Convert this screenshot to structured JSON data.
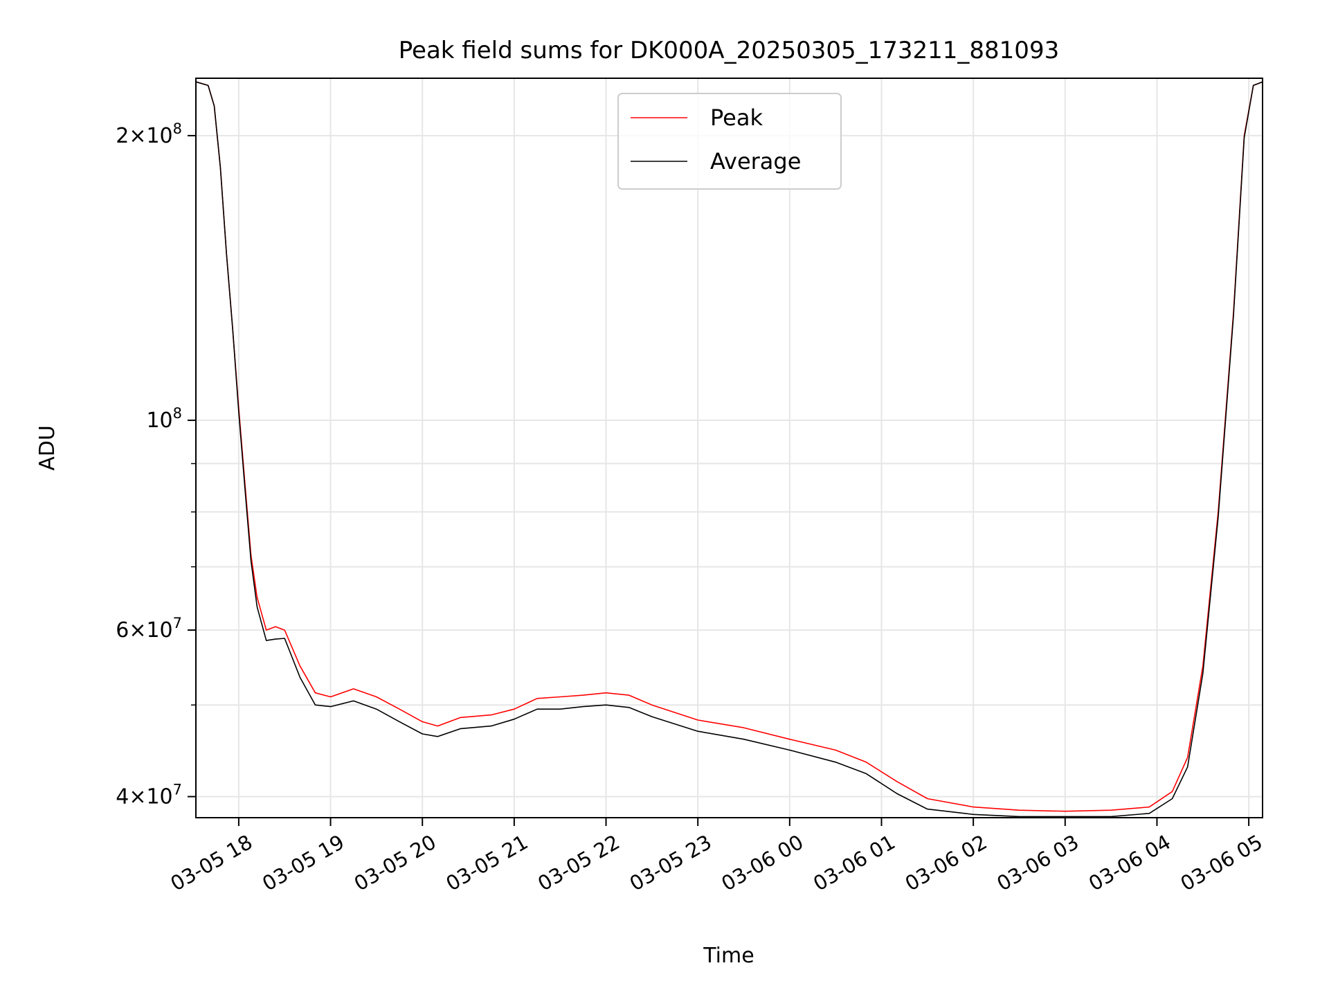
{
  "chart_data": {
    "type": "line",
    "title": "Peak field sums for DK000A_20250305_173211_881093",
    "xlabel": "Time",
    "ylabel": "ADU",
    "yscale": "log",
    "xlim": [
      "2025-03-05 17:32",
      "2025-03-06 05:09"
    ],
    "ylim": [
      38000000,
      230000000
    ],
    "grid": true,
    "legend_position": "top-center",
    "x_ticks": [
      {
        "value": "2025-03-05 18:00",
        "label": "03-05 18"
      },
      {
        "value": "2025-03-05 19:00",
        "label": "03-05 19"
      },
      {
        "value": "2025-03-05 20:00",
        "label": "03-05 20"
      },
      {
        "value": "2025-03-05 21:00",
        "label": "03-05 21"
      },
      {
        "value": "2025-03-05 22:00",
        "label": "03-05 22"
      },
      {
        "value": "2025-03-05 23:00",
        "label": "03-05 23"
      },
      {
        "value": "2025-03-06 00:00",
        "label": "03-06 00"
      },
      {
        "value": "2025-03-06 01:00",
        "label": "03-06 01"
      },
      {
        "value": "2025-03-06 02:00",
        "label": "03-06 02"
      },
      {
        "value": "2025-03-06 03:00",
        "label": "03-06 03"
      },
      {
        "value": "2025-03-06 04:00",
        "label": "03-06 04"
      },
      {
        "value": "2025-03-06 05:00",
        "label": "03-06 05"
      }
    ],
    "y_major_ticks": [
      {
        "value": 40000000,
        "mantissa": "4",
        "exponent": "7"
      },
      {
        "value": 60000000,
        "mantissa": "6",
        "exponent": "7"
      },
      {
        "value": 100000000,
        "mantissa": "",
        "exponent": "8"
      },
      {
        "value": 200000000,
        "mantissa": "2",
        "exponent": "8"
      }
    ],
    "y_minor_ticks": [
      50000000,
      70000000,
      80000000,
      90000000
    ],
    "series": [
      {
        "name": "Peak",
        "color": "#ff0000",
        "points": [
          [
            "2025-03-05 17:32",
            228000000
          ],
          [
            "2025-03-05 17:40",
            226000000
          ],
          [
            "2025-03-05 17:44",
            215000000
          ],
          [
            "2025-03-05 17:48",
            185000000
          ],
          [
            "2025-03-05 17:52",
            150000000
          ],
          [
            "2025-03-05 17:56",
            125000000
          ],
          [
            "2025-03-05 18:00",
            103000000
          ],
          [
            "2025-03-05 18:04",
            86000000
          ],
          [
            "2025-03-05 18:08",
            72000000
          ],
          [
            "2025-03-05 18:12",
            65000000
          ],
          [
            "2025-03-05 18:18",
            60000000
          ],
          [
            "2025-03-05 18:24",
            60500000
          ],
          [
            "2025-03-05 18:30",
            60000000
          ],
          [
            "2025-03-05 18:40",
            55000000
          ],
          [
            "2025-03-05 18:50",
            51500000
          ],
          [
            "2025-03-05 19:00",
            51000000
          ],
          [
            "2025-03-05 19:15",
            52000000
          ],
          [
            "2025-03-05 19:30",
            51000000
          ],
          [
            "2025-03-05 19:45",
            49500000
          ],
          [
            "2025-03-05 20:00",
            48000000
          ],
          [
            "2025-03-05 20:10",
            47500000
          ],
          [
            "2025-03-05 20:25",
            48500000
          ],
          [
            "2025-03-05 20:45",
            48800000
          ],
          [
            "2025-03-05 21:00",
            49500000
          ],
          [
            "2025-03-05 21:15",
            50800000
          ],
          [
            "2025-03-05 21:30",
            51000000
          ],
          [
            "2025-03-05 21:45",
            51200000
          ],
          [
            "2025-03-05 22:00",
            51500000
          ],
          [
            "2025-03-05 22:15",
            51200000
          ],
          [
            "2025-03-05 22:30",
            50000000
          ],
          [
            "2025-03-05 23:00",
            48200000
          ],
          [
            "2025-03-05 23:30",
            47300000
          ],
          [
            "2025-03-06 00:00",
            46000000
          ],
          [
            "2025-03-06 00:30",
            44800000
          ],
          [
            "2025-03-06 00:50",
            43500000
          ],
          [
            "2025-03-06 01:10",
            41500000
          ],
          [
            "2025-03-06 01:30",
            39800000
          ],
          [
            "2025-03-06 02:00",
            39000000
          ],
          [
            "2025-03-06 02:30",
            38700000
          ],
          [
            "2025-03-06 03:00",
            38600000
          ],
          [
            "2025-03-06 03:30",
            38700000
          ],
          [
            "2025-03-06 03:55",
            39000000
          ],
          [
            "2025-03-06 04:10",
            40500000
          ],
          [
            "2025-03-06 04:20",
            44000000
          ],
          [
            "2025-03-06 04:30",
            55000000
          ],
          [
            "2025-03-06 04:40",
            80000000
          ],
          [
            "2025-03-06 04:50",
            130000000
          ],
          [
            "2025-03-06 04:57",
            200000000
          ],
          [
            "2025-03-06 05:03",
            226000000
          ],
          [
            "2025-03-06 05:09",
            228000000
          ]
        ]
      },
      {
        "name": "Average",
        "color": "#000000",
        "points": [
          [
            "2025-03-05 17:32",
            228000000
          ],
          [
            "2025-03-05 17:40",
            226000000
          ],
          [
            "2025-03-05 17:44",
            215000000
          ],
          [
            "2025-03-05 17:48",
            185000000
          ],
          [
            "2025-03-05 17:52",
            150000000
          ],
          [
            "2025-03-05 17:56",
            125000000
          ],
          [
            "2025-03-05 18:00",
            102000000
          ],
          [
            "2025-03-05 18:04",
            85000000
          ],
          [
            "2025-03-05 18:08",
            71000000
          ],
          [
            "2025-03-05 18:12",
            63500000
          ],
          [
            "2025-03-05 18:18",
            58500000
          ],
          [
            "2025-03-05 18:24",
            58700000
          ],
          [
            "2025-03-05 18:30",
            58800000
          ],
          [
            "2025-03-05 18:40",
            53500000
          ],
          [
            "2025-03-05 18:50",
            50000000
          ],
          [
            "2025-03-05 19:00",
            49800000
          ],
          [
            "2025-03-05 19:15",
            50500000
          ],
          [
            "2025-03-05 19:30",
            49500000
          ],
          [
            "2025-03-05 19:45",
            48000000
          ],
          [
            "2025-03-05 20:00",
            46600000
          ],
          [
            "2025-03-05 20:10",
            46300000
          ],
          [
            "2025-03-05 20:25",
            47200000
          ],
          [
            "2025-03-05 20:45",
            47500000
          ],
          [
            "2025-03-05 21:00",
            48300000
          ],
          [
            "2025-03-05 21:15",
            49500000
          ],
          [
            "2025-03-05 21:30",
            49500000
          ],
          [
            "2025-03-05 21:45",
            49800000
          ],
          [
            "2025-03-05 22:00",
            50000000
          ],
          [
            "2025-03-05 22:15",
            49700000
          ],
          [
            "2025-03-05 22:30",
            48600000
          ],
          [
            "2025-03-05 23:00",
            46900000
          ],
          [
            "2025-03-05 23:30",
            46000000
          ],
          [
            "2025-03-06 00:00",
            44800000
          ],
          [
            "2025-03-06 00:30",
            43500000
          ],
          [
            "2025-03-06 00:50",
            42300000
          ],
          [
            "2025-03-06 01:10",
            40300000
          ],
          [
            "2025-03-06 01:30",
            38800000
          ],
          [
            "2025-03-06 02:00",
            38300000
          ],
          [
            "2025-03-06 02:30",
            38100000
          ],
          [
            "2025-03-06 03:00",
            38100000
          ],
          [
            "2025-03-06 03:30",
            38100000
          ],
          [
            "2025-03-06 03:55",
            38400000
          ],
          [
            "2025-03-06 04:10",
            39800000
          ],
          [
            "2025-03-06 04:20",
            43000000
          ],
          [
            "2025-03-06 04:30",
            54000000
          ],
          [
            "2025-03-06 04:40",
            79000000
          ],
          [
            "2025-03-06 04:50",
            129000000
          ],
          [
            "2025-03-06 04:57",
            199000000
          ],
          [
            "2025-03-06 05:03",
            226000000
          ],
          [
            "2025-03-06 05:09",
            228000000
          ]
        ]
      }
    ]
  }
}
